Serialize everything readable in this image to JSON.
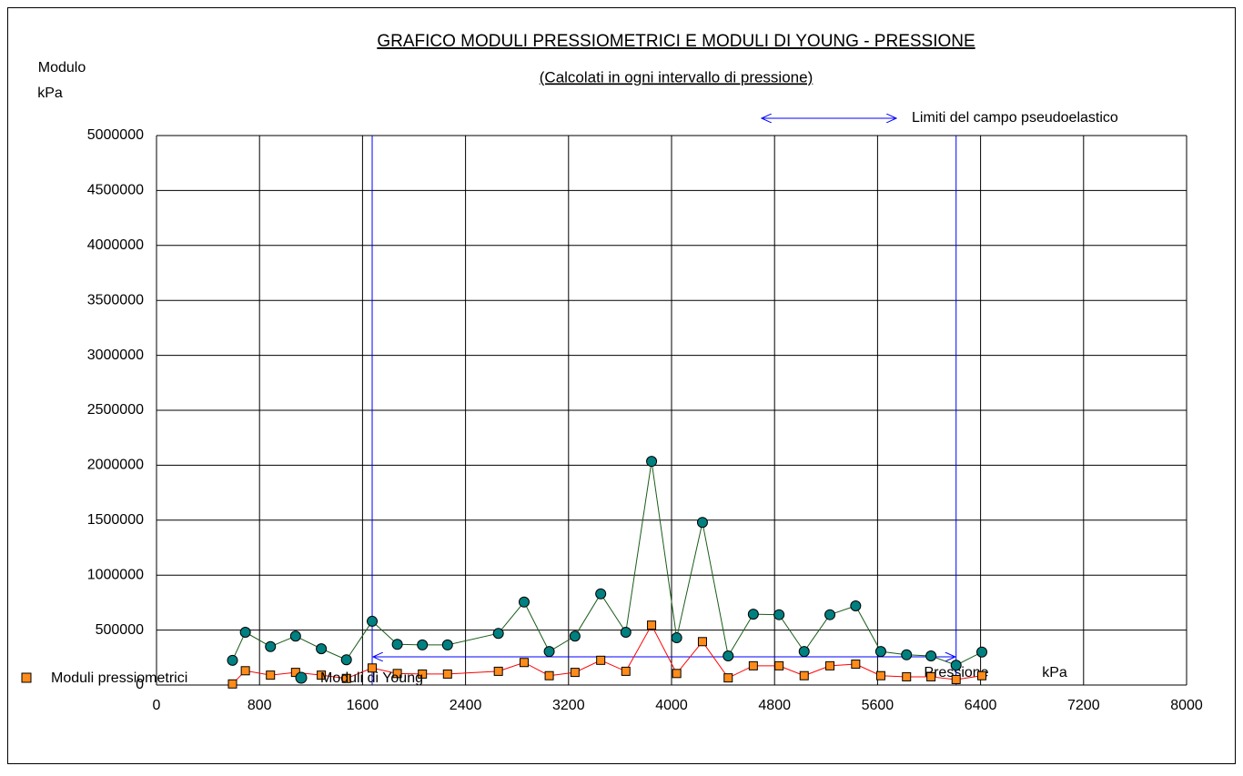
{
  "chart_data": {
    "type": "line",
    "title": "GRAFICO  MODULI PRESSIOMETRICI E MODULI DI YOUNG   -   PRESSIONE",
    "subtitle": "(Calcolati in ogni intervallo di pressione)",
    "y_label": "Modulo",
    "y_unit": "kPa",
    "x_label": "Pressione",
    "x_unit": "kPa",
    "x": [
      590,
      690,
      885,
      1080,
      1280,
      1475,
      1675,
      1870,
      2065,
      2260,
      2655,
      2855,
      3050,
      3250,
      3450,
      3645,
      3845,
      4040,
      4240,
      4440,
      4635,
      4835,
      5030,
      5230,
      5430,
      5625,
      5825,
      6015,
      6210,
      6410
    ],
    "series": [
      {
        "name": "Moduli pressiometrici",
        "color": "#ff8c1a",
        "line_color": "#ff0000",
        "marker": "square",
        "values": [
          10000,
          130000,
          90000,
          115000,
          90000,
          60000,
          155000,
          105000,
          100000,
          100000,
          125000,
          205000,
          85000,
          115000,
          225000,
          125000,
          545000,
          105000,
          395000,
          65000,
          175000,
          175000,
          85000,
          175000,
          190000,
          85000,
          75000,
          75000,
          50000,
          85000
        ]
      },
      {
        "name": "Moduli di Young",
        "color": "#008080",
        "line_color": "#1a5c1a",
        "marker": "circle",
        "values": [
          225000,
          480000,
          350000,
          445000,
          330000,
          230000,
          580000,
          370000,
          365000,
          365000,
          470000,
          755000,
          305000,
          445000,
          830000,
          480000,
          2035000,
          430000,
          1480000,
          265000,
          645000,
          640000,
          305000,
          640000,
          720000,
          305000,
          275000,
          265000,
          180000,
          300000
        ]
      }
    ],
    "limits": {
      "label": "Limiti del campo pseudoelastico",
      "x": [
        1675,
        6210
      ],
      "color": "#0000ff"
    },
    "xlim": [
      0,
      8000
    ],
    "xticks": [
      0,
      800,
      1600,
      2400,
      3200,
      4000,
      4800,
      5600,
      6400,
      7200,
      8000
    ],
    "ylim": [
      0,
      5000000
    ],
    "yticks": [
      0,
      500000,
      1000000,
      1500000,
      2000000,
      2500000,
      3000000,
      3500000,
      4000000,
      4500000,
      5000000
    ],
    "grid": true
  }
}
